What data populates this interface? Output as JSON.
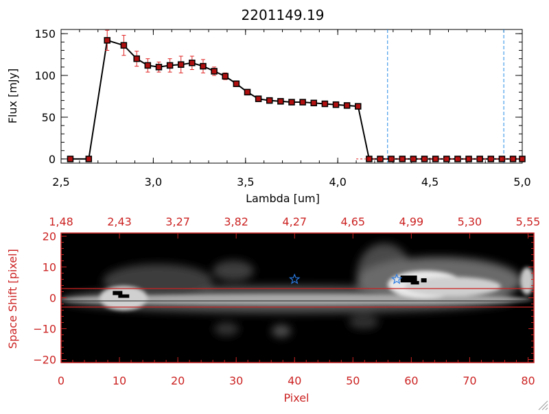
{
  "chart_data": [
    {
      "type": "line",
      "title": "2201149.19",
      "xlabel": "Lambda [um]",
      "ylabel": "Flux [mJy]",
      "xlim": [
        2.5,
        5.0
      ],
      "ylim": [
        -5,
        155
      ],
      "xticks": [
        "2.5",
        "3.0",
        "3.5",
        "4.0",
        "4.5",
        "5.0"
      ],
      "yticks": [
        "0",
        "50",
        "100",
        "150"
      ],
      "vlines": [
        4.27,
        4.9
      ],
      "series": [
        {
          "x": [
            2.55,
            2.65,
            2.75,
            2.84,
            2.91,
            2.97,
            3.03,
            3.09,
            3.15,
            3.21,
            3.27,
            3.33,
            3.39,
            3.45,
            3.51,
            3.57,
            3.63,
            3.69,
            3.75,
            3.81,
            3.87,
            3.93,
            3.99,
            4.05,
            4.11,
            4.17,
            4.23,
            4.29,
            4.35,
            4.41,
            4.47,
            4.53,
            4.59,
            4.65,
            4.71,
            4.77,
            4.83,
            4.89,
            4.95,
            5.0
          ],
          "y": [
            0,
            0,
            142,
            136,
            120,
            112,
            110,
            112,
            113,
            115,
            111,
            105,
            99,
            90,
            80,
            72,
            70,
            69,
            68,
            68,
            67,
            66,
            65,
            64,
            63,
            0,
            0,
            0,
            0,
            0,
            0,
            0,
            0,
            0,
            0,
            0,
            0,
            0,
            0,
            0
          ],
          "yerr": [
            0,
            0,
            12,
            12,
            9,
            8,
            6,
            8,
            10,
            8,
            8,
            5,
            4,
            0,
            0,
            0,
            0,
            0,
            0,
            0,
            0,
            0,
            0,
            0,
            0,
            0,
            0,
            0,
            0,
            0,
            0,
            0,
            0,
            0,
            0,
            0,
            0,
            0,
            0,
            0
          ]
        }
      ]
    },
    {
      "type": "heatmap",
      "xlabel": "Pixel",
      "ylabel": "Space Shift [pixel]",
      "xlim": [
        0,
        81
      ],
      "ylim": [
        -21,
        21
      ],
      "xticks": [
        "0",
        "10",
        "20",
        "30",
        "40",
        "50",
        "60",
        "70",
        "80"
      ],
      "yticks": [
        "-20",
        "-10",
        "0",
        "10",
        "20"
      ],
      "top_ticks": [
        "1.48",
        "2.43",
        "3.27",
        "3.82",
        "4.27",
        "4.65",
        "4.99",
        "5.30",
        "5.55"
      ],
      "hlines": [
        3,
        -3
      ],
      "markers": [
        {
          "x": 40,
          "y": 6
        },
        {
          "x": 57.5,
          "y": 6
        }
      ],
      "sources": [
        {
          "x": 10.5,
          "y": 0
        },
        {
          "x": 60.5,
          "y": 5
        }
      ]
    }
  ],
  "colors": {
    "line": "#000000",
    "marker": "#b01010",
    "errorbar": "#e02020",
    "vline": "#1e88e5",
    "axis_red": "#cc2222",
    "band_line": "#cc2222",
    "star": "#2a7be4"
  }
}
